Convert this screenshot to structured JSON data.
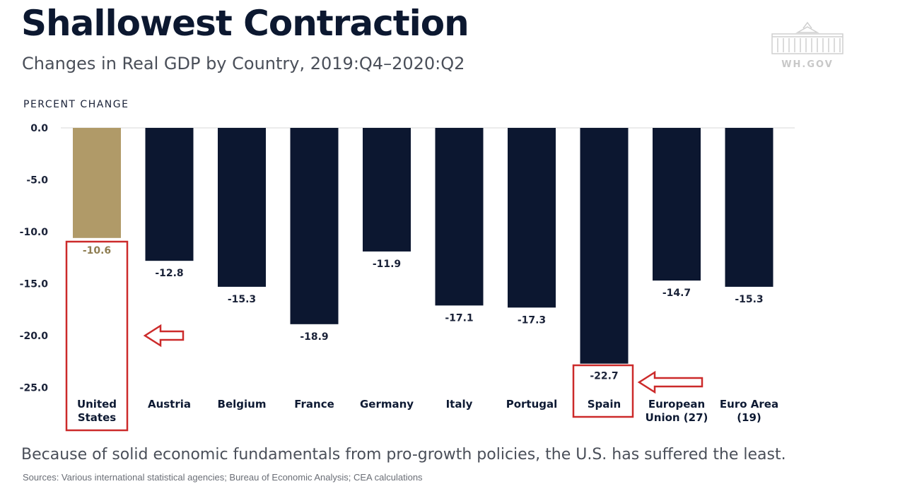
{
  "header": {
    "title": "Shallowest Contraction",
    "subtitle": "Changes in Real GDP by Country, 2019:Q4–2020:Q2",
    "logo_text": "WH.GOV"
  },
  "chart_data": {
    "type": "bar",
    "ylabel": "PERCENT CHANGE",
    "ylim": [
      -28.5,
      0
    ],
    "yticks": [
      0,
      -5,
      -10,
      -15,
      -20,
      -25
    ],
    "ytick_labels": [
      "0.0",
      "-5.0",
      "-10.0",
      "-15.0",
      "-20.0",
      "-25.0"
    ],
    "categories": [
      [
        "United",
        "States"
      ],
      [
        "Austria"
      ],
      [
        "Belgium"
      ],
      [
        "France"
      ],
      [
        "Germany"
      ],
      [
        "Italy"
      ],
      [
        "Portugal"
      ],
      [
        "Spain"
      ],
      [
        "European",
        "Union (27)"
      ],
      [
        "Euro Area",
        "(19)"
      ]
    ],
    "values": [
      -10.6,
      -12.8,
      -15.3,
      -18.9,
      -11.9,
      -17.1,
      -17.3,
      -22.7,
      -14.7,
      -15.3
    ],
    "value_labels": [
      "-10.6",
      "-12.8",
      "-15.3",
      "-18.9",
      "-11.9",
      "-17.1",
      "-17.3",
      "-22.7",
      "-14.7",
      "-15.3"
    ],
    "colors": {
      "default_bar": "#0c1730",
      "highlight_bar": "#b09a68",
      "highlight_label": "#8f7e52",
      "annotation": "#cc2a2a"
    },
    "highlight_index": 0,
    "annotated_indices": [
      0,
      7
    ]
  },
  "footer": {
    "note": "Because of solid economic fundamentals from pro-growth policies, the U.S. has suffered the least.",
    "sources": "Sources: Various international statistical agencies; Bureau of Economic Analysis; CEA calculations"
  }
}
